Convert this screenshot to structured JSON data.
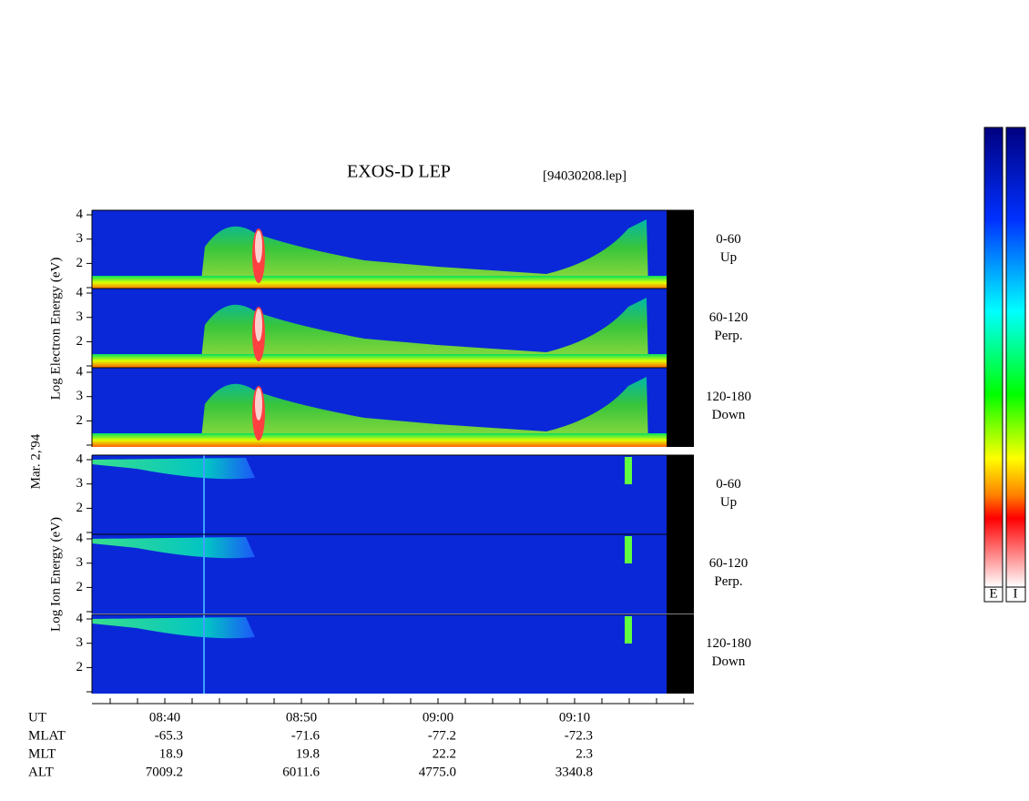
{
  "title": "EXOS-D LEP",
  "file": "[94030208.lep]",
  "date": "Mar. 2,'94",
  "electron_axis_label": "Log Electron Energy (eV)",
  "ion_axis_label": "Log Ion Energy (eV)",
  "yticks": [
    4,
    3,
    2
  ],
  "panels": [
    {
      "angle": "0-60",
      "direction": "Up"
    },
    {
      "angle": "60-120",
      "direction": "Perp."
    },
    {
      "angle": "120-180",
      "direction": "Down"
    },
    {
      "angle": "0-60",
      "direction": "Up"
    },
    {
      "angle": "60-120",
      "direction": "Perp."
    },
    {
      "angle": "120-180",
      "direction": "Down"
    }
  ],
  "orbit_rows": [
    {
      "label": "UT",
      "values": [
        "08:40",
        "08:50",
        "09:00",
        "09:10"
      ]
    },
    {
      "label": "MLAT",
      "values": [
        "-65.3",
        "-71.6",
        "-77.2",
        "-72.3"
      ]
    },
    {
      "label": "MLT",
      "values": [
        "18.9",
        "19.8",
        "22.2",
        "2.3"
      ]
    },
    {
      "label": "ALT",
      "values": [
        "7009.2",
        "6011.6",
        "4775.0",
        "3340.8"
      ]
    }
  ],
  "colorbars": [
    "E",
    "I"
  ]
}
